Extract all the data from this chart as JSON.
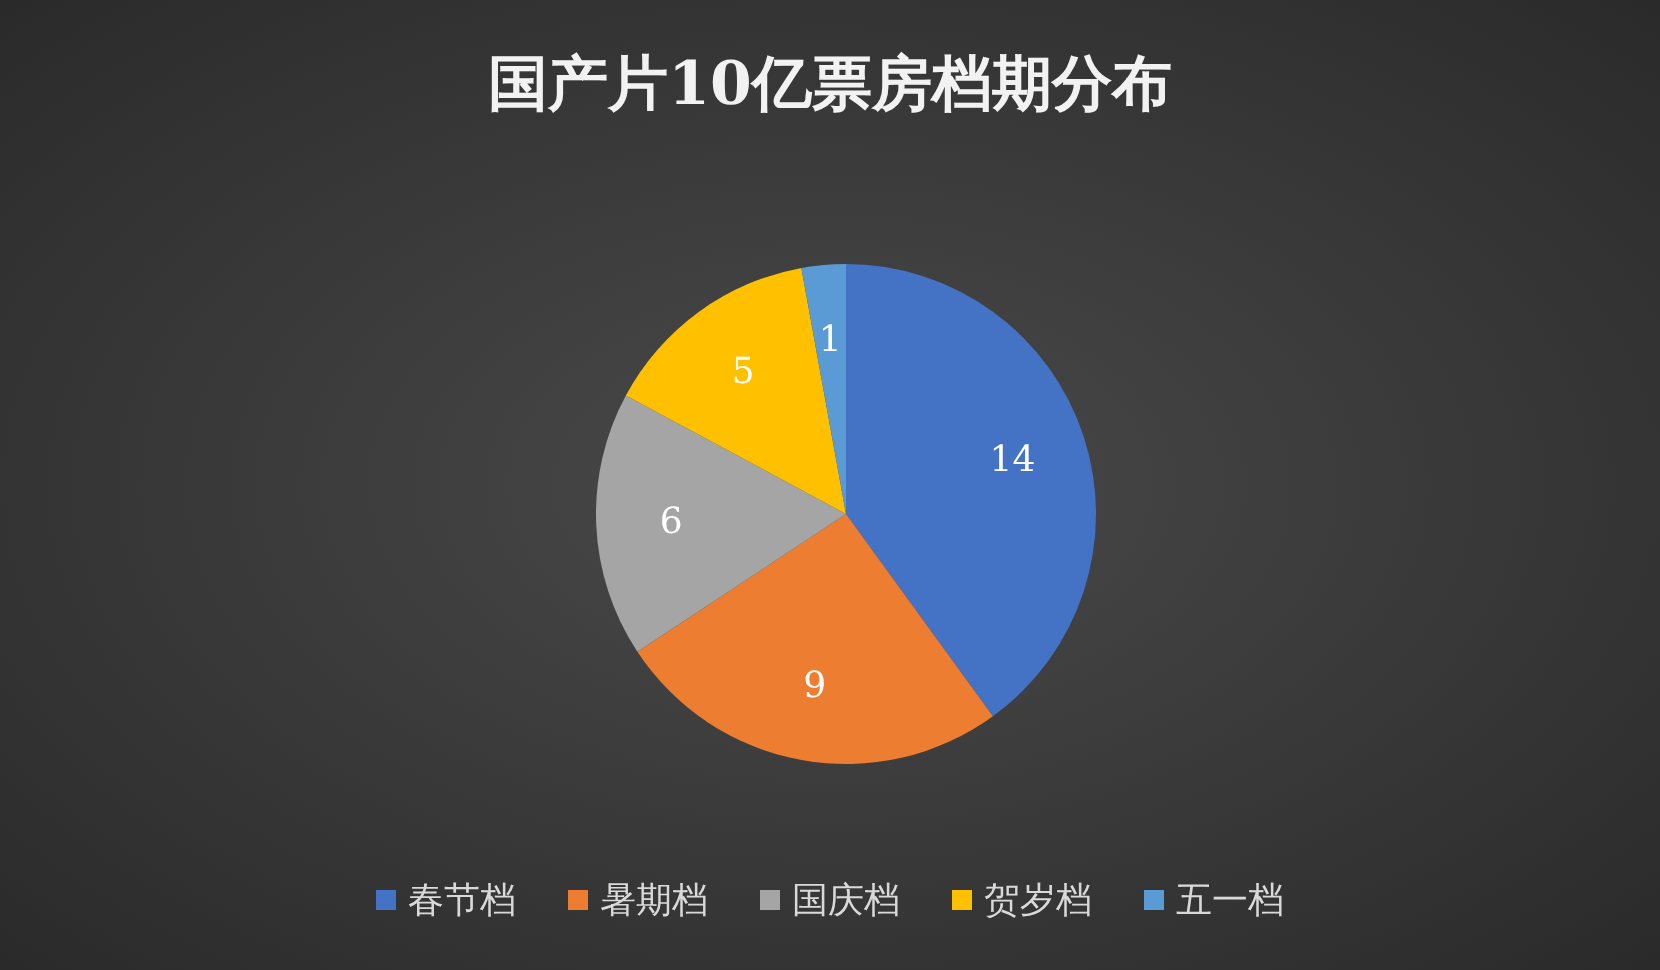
{
  "chart_data": {
    "type": "pie",
    "title": "国产片10亿票房档期分布",
    "categories": [
      "春节档",
      "暑期档",
      "国庆档",
      "贺岁档",
      "五一档"
    ],
    "values": [
      14,
      9,
      6,
      5,
      1
    ],
    "colors": [
      "#4472c4",
      "#ed7d31",
      "#a5a5a5",
      "#ffc000",
      "#5b9bd5"
    ],
    "data_labels": true,
    "legend": "bottom"
  }
}
